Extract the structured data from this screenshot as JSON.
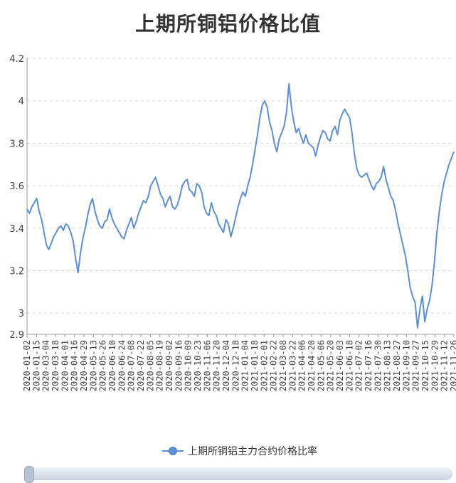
{
  "chart_data": {
    "type": "line",
    "title": "上期所铜铝价格比值",
    "ylim": [
      2.9,
      4.2
    ],
    "y_ticks": [
      "4.2",
      "4",
      "3.8",
      "3.6",
      "3.4",
      "3.2",
      "3",
      "2.9"
    ],
    "x_ticks": [
      "2020-01-02",
      "2020-01-15",
      "2020-03-04",
      "2020-03-18",
      "2020-04-01",
      "2020-04-16",
      "2020-04-29",
      "2020-05-13",
      "2020-05-26",
      "2020-06-10",
      "2020-06-24",
      "2020-07-08",
      "2020-07-22",
      "2020-08-05",
      "2020-08-19",
      "2020-09-02",
      "2020-09-16",
      "2020-10-09",
      "2020-10-23",
      "2020-11-06",
      "2020-11-20",
      "2020-12-04",
      "2020-12-18",
      "2021-01-04",
      "2021-01-18",
      "2021-02-01",
      "2021-02-22",
      "2021-03-08",
      "2021-03-22",
      "2021-04-06",
      "2021-04-20",
      "2021-05-06",
      "2021-05-20",
      "2021-06-03",
      "2021-06-18",
      "2021-07-02",
      "2021-07-16",
      "2021-07-30",
      "2021-08-13",
      "2021-08-27",
      "2021-09-10",
      "2021-09-27",
      "2021-10-15",
      "2021-10-29",
      "2021-11-12",
      "2021-11-26"
    ],
    "grid": true,
    "legend_position": "bottom",
    "series": [
      {
        "name": "上期所铜铝主力合约价格比率",
        "color": "#5b8fd6",
        "values": [
          3.49,
          3.47,
          3.5,
          3.52,
          3.54,
          3.48,
          3.44,
          3.38,
          3.32,
          3.3,
          3.33,
          3.36,
          3.38,
          3.4,
          3.41,
          3.39,
          3.42,
          3.41,
          3.38,
          3.34,
          3.26,
          3.19,
          3.28,
          3.35,
          3.4,
          3.46,
          3.51,
          3.54,
          3.48,
          3.44,
          3.41,
          3.4,
          3.43,
          3.44,
          3.49,
          3.45,
          3.42,
          3.4,
          3.38,
          3.36,
          3.35,
          3.39,
          3.42,
          3.45,
          3.4,
          3.43,
          3.47,
          3.5,
          3.53,
          3.52,
          3.55,
          3.6,
          3.62,
          3.64,
          3.6,
          3.56,
          3.54,
          3.5,
          3.53,
          3.55,
          3.5,
          3.49,
          3.51,
          3.55,
          3.6,
          3.62,
          3.63,
          3.58,
          3.57,
          3.55,
          3.61,
          3.6,
          3.57,
          3.5,
          3.47,
          3.46,
          3.52,
          3.48,
          3.46,
          3.42,
          3.4,
          3.38,
          3.44,
          3.42,
          3.36,
          3.4,
          3.45,
          3.5,
          3.54,
          3.57,
          3.55,
          3.6,
          3.64,
          3.7,
          3.77,
          3.84,
          3.92,
          3.98,
          4.0,
          3.97,
          3.9,
          3.86,
          3.8,
          3.76,
          3.82,
          3.85,
          3.88,
          3.95,
          4.08,
          3.97,
          3.9,
          3.85,
          3.87,
          3.83,
          3.8,
          3.84,
          3.8,
          3.79,
          3.78,
          3.74,
          3.79,
          3.83,
          3.86,
          3.85,
          3.82,
          3.81,
          3.86,
          3.88,
          3.84,
          3.91,
          3.94,
          3.96,
          3.94,
          3.92,
          3.85,
          3.75,
          3.68,
          3.65,
          3.64,
          3.65,
          3.66,
          3.63,
          3.6,
          3.58,
          3.61,
          3.62,
          3.64,
          3.69,
          3.63,
          3.59,
          3.55,
          3.53,
          3.48,
          3.42,
          3.37,
          3.32,
          3.27,
          3.2,
          3.12,
          3.08,
          3.05,
          2.93,
          3.02,
          3.08,
          2.96,
          3.02,
          3.06,
          3.13,
          3.24,
          3.38,
          3.48,
          3.56,
          3.62,
          3.66,
          3.7,
          3.73,
          3.76
        ]
      }
    ]
  }
}
